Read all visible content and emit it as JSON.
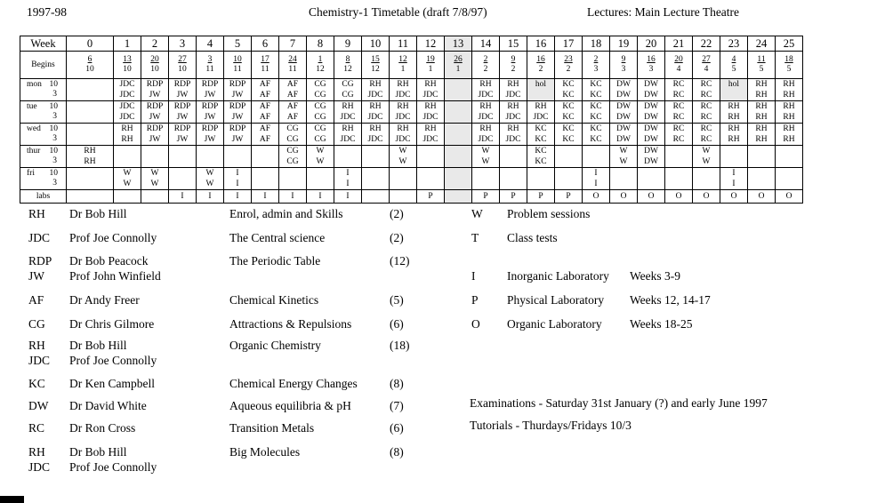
{
  "header": {
    "session": "1997-98",
    "title": "Chemistry-1 Timetable (draft 7/8/97)",
    "location": "Lectures: Main Lecture Theatre"
  },
  "timetable": {
    "week_label": "Week",
    "begins_label": "Begins",
    "labs_label": "labs",
    "weeks": [
      0,
      1,
      2,
      3,
      4,
      5,
      6,
      7,
      8,
      9,
      10,
      11,
      12,
      13,
      14,
      15,
      16,
      17,
      18,
      19,
      20,
      21,
      22,
      23,
      24,
      25
    ],
    "begins": [
      "6/10",
      "13/10",
      "20/10",
      "27/10",
      "3/11",
      "10/11",
      "17/11",
      "24/11",
      "1/12",
      "8/12",
      "15/12",
      "12/1",
      "19/1",
      "26/1",
      "2/2",
      "9/2",
      "16/2",
      "23/2",
      "2/3",
      "9/3",
      "16/3",
      "20/4",
      "27/4",
      "4/5",
      "11/5",
      "18/5"
    ],
    "shaded_column": 13,
    "term_break_before_weeks": [
      11,
      21
    ],
    "day_rows": [
      {
        "day": "mon",
        "time1": "10",
        "time2": "3",
        "shaded_weeks": [
          16,
          23
        ],
        "cells10": [
          "",
          "JDC",
          "RDP",
          "RDP",
          "RDP",
          "RDP",
          "AF",
          "AF",
          "CG",
          "CG",
          "RH",
          "RH",
          "RH",
          "",
          "RH",
          "RH",
          "hol",
          "KC",
          "KC",
          "DW",
          "DW",
          "RC",
          "RC",
          "hol",
          "RH",
          "RH"
        ],
        "cells3": [
          "",
          "JDC",
          "JW",
          "JW",
          "JW",
          "JW",
          "AF",
          "AF",
          "CG",
          "CG",
          "JDC",
          "JDC",
          "JDC",
          "",
          "JDC",
          "JDC",
          "",
          "KC",
          "KC",
          "DW",
          "DW",
          "RC",
          "RC",
          "",
          "RH",
          "RH"
        ]
      },
      {
        "day": "tue",
        "time1": "10",
        "time2": "3",
        "shaded_weeks": [],
        "cells10": [
          "",
          "JDC",
          "RDP",
          "RDP",
          "RDP",
          "RDP",
          "AF",
          "AF",
          "CG",
          "RH",
          "RH",
          "RH",
          "RH",
          "",
          "RH",
          "RH",
          "RH",
          "KC",
          "KC",
          "DW",
          "DW",
          "RC",
          "RC",
          "RH",
          "RH",
          "RH"
        ],
        "cells3": [
          "",
          "JDC",
          "JW",
          "JW",
          "JW",
          "JW",
          "AF",
          "AF",
          "CG",
          "JDC",
          "JDC",
          "JDC",
          "JDC",
          "",
          "JDC",
          "JDC",
          "JDC",
          "KC",
          "KC",
          "DW",
          "DW",
          "RC",
          "RC",
          "RH",
          "RH",
          "RH"
        ]
      },
      {
        "day": "wed",
        "time1": "10",
        "time2": "3",
        "shaded_weeks": [],
        "cells10": [
          "",
          "RH",
          "RDP",
          "RDP",
          "RDP",
          "RDP",
          "AF",
          "CG",
          "CG",
          "RH",
          "RH",
          "RH",
          "RH",
          "",
          "RH",
          "RH",
          "KC",
          "KC",
          "KC",
          "DW",
          "DW",
          "RC",
          "RC",
          "RH",
          "RH",
          "RH"
        ],
        "cells3": [
          "",
          "RH",
          "JW",
          "JW",
          "JW",
          "JW",
          "AF",
          "CG",
          "CG",
          "JDC",
          "JDC",
          "JDC",
          "JDC",
          "",
          "JDC",
          "JDC",
          "KC",
          "KC",
          "KC",
          "DW",
          "DW",
          "RC",
          "RC",
          "RH",
          "RH",
          "RH"
        ]
      },
      {
        "day": "thur",
        "time1": "10",
        "time2": "3",
        "shaded_weeks": [],
        "cells10": [
          "RH",
          "",
          "",
          "",
          "",
          "",
          "",
          "CG",
          "W",
          "",
          "",
          "W",
          "",
          "",
          "W",
          "",
          "KC",
          "",
          "",
          "W",
          "DW",
          "",
          "W",
          "",
          "",
          ""
        ],
        "cells3": [
          "RH",
          "",
          "",
          "",
          "",
          "",
          "",
          "CG",
          "W",
          "",
          "",
          "W",
          "",
          "",
          "W",
          "",
          "KC",
          "",
          "",
          "W",
          "DW",
          "",
          "W",
          "",
          "",
          ""
        ]
      },
      {
        "day": "fri",
        "time1": "10",
        "time2": "3",
        "shaded_weeks": [],
        "cells10": [
          "",
          "W",
          "W",
          "",
          "W",
          "I",
          "",
          "",
          "",
          "I",
          "",
          "",
          "",
          "",
          "",
          "",
          "",
          "",
          "I",
          "",
          "",
          "",
          "",
          "I",
          "",
          ""
        ],
        "cells3": [
          "",
          "W",
          "W",
          "",
          "W",
          "I",
          "",
          "",
          "",
          "I",
          "",
          "",
          "",
          "",
          "",
          "",
          "",
          "",
          "I",
          "",
          "",
          "",
          "",
          "I",
          "",
          ""
        ]
      }
    ],
    "labs_row": [
      "",
      "",
      "",
      "I",
      "I",
      "I",
      "I",
      "I",
      "I",
      "I",
      "",
      "",
      "P",
      "",
      "P",
      "P",
      "P",
      "P",
      "O",
      "O",
      "O",
      "O",
      "O",
      "O",
      "O",
      "O"
    ]
  },
  "legend_lecturers": [
    {
      "codes": [
        "RH"
      ],
      "names": [
        "Dr Bob Hill"
      ],
      "subject": "Enrol, admin and Skills",
      "count": "(2)"
    },
    {
      "codes": [
        "JDC"
      ],
      "names": [
        "Prof Joe Connolly"
      ],
      "subject": "The Central science",
      "count": "(2)"
    },
    {
      "codes": [
        "RDP",
        "JW"
      ],
      "names": [
        "Dr Bob Peacock",
        "Prof John Winfield"
      ],
      "subject": "The Periodic Table",
      "count": "(12)"
    },
    {
      "codes": [
        "AF"
      ],
      "names": [
        "Dr Andy Freer"
      ],
      "subject": "Chemical Kinetics",
      "count": "(5)"
    },
    {
      "codes": [
        "CG"
      ],
      "names": [
        "Dr Chris Gilmore"
      ],
      "subject": "Attractions & Repulsions",
      "count": "(6)"
    },
    {
      "codes": [
        "RH",
        "JDC"
      ],
      "names": [
        "Dr Bob Hill",
        "Prof Joe Connolly"
      ],
      "subject": "Organic Chemistry",
      "count": "(18)"
    },
    {
      "codes": [
        "KC"
      ],
      "names": [
        "Dr Ken Campbell"
      ],
      "subject": "Chemical Energy Changes",
      "count": "(8)"
    },
    {
      "codes": [
        "DW"
      ],
      "names": [
        "Dr David White"
      ],
      "subject": "Aqueous equilibria & pH",
      "count": "(7)"
    },
    {
      "codes": [
        "RC"
      ],
      "names": [
        "Dr Ron Cross"
      ],
      "subject": "Transition Metals",
      "count": "(6)"
    },
    {
      "codes": [
        "RH",
        "JDC"
      ],
      "names": [
        "Dr Bob Hill",
        "Prof Joe Connolly"
      ],
      "subject": "Big Molecules",
      "count": "(8)"
    }
  ],
  "legend_symbols": [
    {
      "code": "W",
      "label": "Problem sessions",
      "weeks": ""
    },
    {
      "code": "T",
      "label": "Class tests",
      "weeks": ""
    },
    {
      "code": "I",
      "label": "Inorganic Laboratory",
      "weeks": "Weeks 3-9"
    },
    {
      "code": "P",
      "label": "Physical Laboratory",
      "weeks": "Weeks 12, 14-17"
    },
    {
      "code": "O",
      "label": "Organic Laboratory",
      "weeks": "Weeks 18-25"
    }
  ],
  "notes": {
    "examinations": "Examinations - Saturday 31st January (?)  and early June 1997",
    "tutorials": "Tutorials - Thurdays/Fridays 10/3"
  }
}
